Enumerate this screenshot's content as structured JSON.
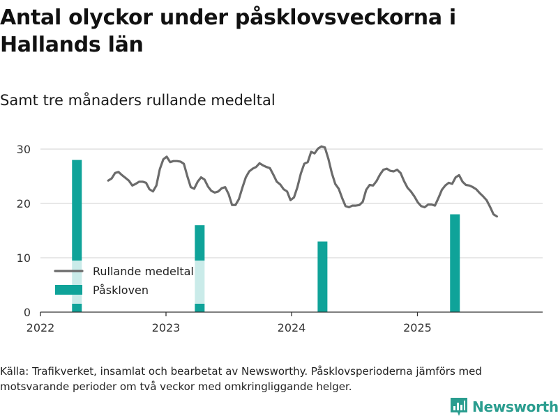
{
  "title": "Antal olyckor under påsklovsveckorna i Hallands län",
  "subtitle": "Samt tre månaders rullande medeltal",
  "source": "Källa: Trafikverket, insamlat och bearbetat av Newsworthy. Påsklovsperioderna jämförs med motsvarande perioder om två veckor med omkringliggande helger.",
  "brand": {
    "name": "Newsworthy",
    "logo_icon": "bar-chart-logo-icon"
  },
  "colors": {
    "line": "#6b6b6b",
    "bar": "#0fa399",
    "grid": "#d9d9d9",
    "axis": "#333333",
    "brand": "#2a9d8f"
  },
  "chart_data": {
    "type": "bar+line",
    "ylim": [
      0,
      30
    ],
    "yticks": [
      0,
      10,
      20,
      30
    ],
    "xlim": [
      "2022-01-01",
      "2025-12-31"
    ],
    "xticks": [
      {
        "label": "2022",
        "date": "2022-01-01"
      },
      {
        "label": "2023",
        "date": "2023-01-01"
      },
      {
        "label": "2024",
        "date": "2024-01-01"
      },
      {
        "label": "2025",
        "date": "2025-01-01"
      }
    ],
    "grid": true,
    "legend": {
      "position": "bottom-left",
      "entries": [
        {
          "label": "Rullande medeltal",
          "kind": "line"
        },
        {
          "label": "Påskloven",
          "kind": "bar"
        }
      ]
    },
    "bars": {
      "name": "Påskloven",
      "points": [
        {
          "date": "2022-04-17",
          "value": 28
        },
        {
          "date": "2023-04-09",
          "value": 16
        },
        {
          "date": "2024-03-31",
          "value": 13
        },
        {
          "date": "2025-04-20",
          "value": 18
        }
      ]
    },
    "line": {
      "name": "Rullande medeltal",
      "points": [
        [
          "2022-07-17",
          24.2
        ],
        [
          "2022-07-27",
          24.6
        ],
        [
          "2022-08-06",
          25.6
        ],
        [
          "2022-08-16",
          25.8
        ],
        [
          "2022-08-26",
          25.2
        ],
        [
          "2022-09-05",
          24.7
        ],
        [
          "2022-09-15",
          24.2
        ],
        [
          "2022-09-25",
          23.3
        ],
        [
          "2022-10-05",
          23.6
        ],
        [
          "2022-10-15",
          24.0
        ],
        [
          "2022-10-25",
          24.0
        ],
        [
          "2022-11-04",
          23.8
        ],
        [
          "2022-11-14",
          22.6
        ],
        [
          "2022-11-24",
          22.2
        ],
        [
          "2022-12-04",
          23.3
        ],
        [
          "2022-12-14",
          26.3
        ],
        [
          "2022-12-24",
          28.1
        ],
        [
          "2023-01-03",
          28.6
        ],
        [
          "2023-01-13",
          27.6
        ],
        [
          "2023-01-23",
          27.8
        ],
        [
          "2023-02-02",
          27.8
        ],
        [
          "2023-02-12",
          27.7
        ],
        [
          "2023-02-22",
          27.3
        ],
        [
          "2023-03-04",
          25.0
        ],
        [
          "2023-03-14",
          23.0
        ],
        [
          "2023-03-24",
          22.7
        ],
        [
          "2023-04-03",
          24.0
        ],
        [
          "2023-04-13",
          24.8
        ],
        [
          "2023-04-23",
          24.4
        ],
        [
          "2023-05-03",
          23.1
        ],
        [
          "2023-05-13",
          22.3
        ],
        [
          "2023-05-23",
          22.0
        ],
        [
          "2023-06-02",
          22.2
        ],
        [
          "2023-06-12",
          22.8
        ],
        [
          "2023-06-22",
          23.0
        ],
        [
          "2023-07-02",
          21.7
        ],
        [
          "2023-07-12",
          19.7
        ],
        [
          "2023-07-22",
          19.7
        ],
        [
          "2023-08-01",
          20.8
        ],
        [
          "2023-08-11",
          22.9
        ],
        [
          "2023-08-21",
          24.8
        ],
        [
          "2023-08-31",
          25.9
        ],
        [
          "2023-09-10",
          26.4
        ],
        [
          "2023-09-20",
          26.7
        ],
        [
          "2023-09-30",
          27.4
        ],
        [
          "2023-10-10",
          27.0
        ],
        [
          "2023-10-20",
          26.7
        ],
        [
          "2023-10-30",
          26.5
        ],
        [
          "2023-11-09",
          25.3
        ],
        [
          "2023-11-19",
          24.0
        ],
        [
          "2023-11-29",
          23.5
        ],
        [
          "2023-12-09",
          22.6
        ],
        [
          "2023-12-19",
          22.2
        ],
        [
          "2023-12-29",
          20.6
        ],
        [
          "2024-01-08",
          21.1
        ],
        [
          "2024-01-18",
          23.0
        ],
        [
          "2024-01-28",
          25.5
        ],
        [
          "2024-02-07",
          27.3
        ],
        [
          "2024-02-17",
          27.6
        ],
        [
          "2024-02-27",
          29.5
        ],
        [
          "2024-03-08",
          29.2
        ],
        [
          "2024-03-18",
          30.1
        ],
        [
          "2024-03-28",
          30.5
        ],
        [
          "2024-04-07",
          30.3
        ],
        [
          "2024-04-17",
          28.2
        ],
        [
          "2024-04-27",
          25.6
        ],
        [
          "2024-05-07",
          23.6
        ],
        [
          "2024-05-17",
          22.7
        ],
        [
          "2024-05-27",
          21.0
        ],
        [
          "2024-06-06",
          19.5
        ],
        [
          "2024-06-16",
          19.3
        ],
        [
          "2024-06-26",
          19.6
        ],
        [
          "2024-07-06",
          19.6
        ],
        [
          "2024-07-16",
          19.7
        ],
        [
          "2024-07-26",
          20.3
        ],
        [
          "2024-08-05",
          22.5
        ],
        [
          "2024-08-15",
          23.4
        ],
        [
          "2024-08-25",
          23.3
        ],
        [
          "2024-09-04",
          24.1
        ],
        [
          "2024-09-14",
          25.3
        ],
        [
          "2024-09-24",
          26.2
        ],
        [
          "2024-10-04",
          26.4
        ],
        [
          "2024-10-14",
          26.0
        ],
        [
          "2024-10-24",
          25.9
        ],
        [
          "2024-11-03",
          26.2
        ],
        [
          "2024-11-13",
          25.6
        ],
        [
          "2024-11-23",
          24.1
        ],
        [
          "2024-12-03",
          22.9
        ],
        [
          "2024-12-13",
          22.2
        ],
        [
          "2024-12-23",
          21.3
        ],
        [
          "2025-01-02",
          20.2
        ],
        [
          "2025-01-12",
          19.5
        ],
        [
          "2025-01-22",
          19.3
        ],
        [
          "2025-02-01",
          19.8
        ],
        [
          "2025-02-11",
          19.8
        ],
        [
          "2025-02-21",
          19.6
        ],
        [
          "2025-03-03",
          21.0
        ],
        [
          "2025-03-13",
          22.5
        ],
        [
          "2025-03-23",
          23.3
        ],
        [
          "2025-04-02",
          23.8
        ],
        [
          "2025-04-12",
          23.6
        ],
        [
          "2025-04-22",
          24.8
        ],
        [
          "2025-05-02",
          25.2
        ],
        [
          "2025-05-12",
          24.0
        ],
        [
          "2025-05-22",
          23.4
        ],
        [
          "2025-06-01",
          23.3
        ],
        [
          "2025-06-11",
          23.0
        ],
        [
          "2025-06-21",
          22.6
        ],
        [
          "2025-07-01",
          21.9
        ],
        [
          "2025-07-11",
          21.3
        ],
        [
          "2025-07-21",
          20.6
        ],
        [
          "2025-07-31",
          19.4
        ],
        [
          "2025-08-10",
          18.0
        ],
        [
          "2025-08-20",
          17.6
        ]
      ]
    }
  }
}
